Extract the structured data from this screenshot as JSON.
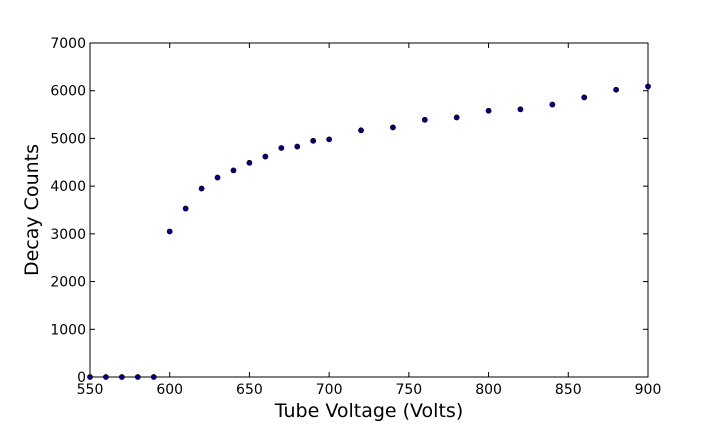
{
  "chart_data": {
    "type": "scatter",
    "title": "",
    "xlabel": "Tube Voltage (Volts)",
    "ylabel": "Decay Counts",
    "xlim": [
      550,
      900
    ],
    "ylim": [
      0,
      7000
    ],
    "xticks": [
      550,
      600,
      650,
      700,
      750,
      800,
      850,
      900
    ],
    "yticks": [
      0,
      1000,
      2000,
      3000,
      4000,
      5000,
      6000,
      7000
    ],
    "grid": false,
    "legend": "none",
    "marker_color": "#00008b",
    "series": [
      {
        "x": [
          550,
          560,
          570,
          580,
          590,
          600,
          610,
          620,
          630,
          640,
          650,
          660,
          670,
          680,
          690,
          700,
          720,
          740,
          760,
          780,
          800,
          820,
          840,
          860,
          880,
          900
        ],
        "y": [
          0,
          0,
          0,
          0,
          0,
          3050,
          3530,
          3950,
          4180,
          4330,
          4490,
          4620,
          4800,
          4830,
          4950,
          4980,
          5170,
          5230,
          5390,
          5440,
          5580,
          5610,
          5710,
          5860,
          6020,
          6090
        ]
      }
    ]
  }
}
